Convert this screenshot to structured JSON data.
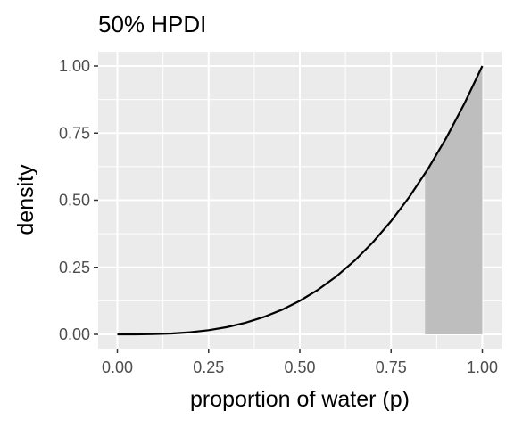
{
  "chart_data": {
    "type": "area",
    "title": "50% HPDI",
    "xlabel": "proportion of water (p)",
    "ylabel": "density",
    "xlim": [
      0,
      1
    ],
    "ylim": [
      0,
      1
    ],
    "x_ticks": [
      "0.00",
      "0.25",
      "0.50",
      "0.75",
      "1.00"
    ],
    "y_ticks": [
      "0.00",
      "0.25",
      "0.50",
      "0.75",
      "1.00"
    ],
    "grid": true,
    "series": [
      {
        "x": [
          0,
          0.05,
          0.1,
          0.15,
          0.2,
          0.25,
          0.3,
          0.35,
          0.4,
          0.45,
          0.5,
          0.55,
          0.6,
          0.65,
          0.7,
          0.75,
          0.8,
          0.85,
          0.9,
          0.95,
          1
        ],
        "y": [
          0,
          0.0001,
          0.001,
          0.0034,
          0.008,
          0.0156,
          0.027,
          0.0429,
          0.064,
          0.0911,
          0.125,
          0.1664,
          0.216,
          0.2746,
          0.343,
          0.4219,
          0.512,
          0.6141,
          0.729,
          0.8574,
          1
        ]
      }
    ],
    "shaded_interval": {
      "from": 0.843,
      "to": 1.0,
      "label": "50% HPDI"
    },
    "colors": {
      "panel": "#ebebeb",
      "grid": "#ffffff",
      "shade": "#bebebe",
      "line": "#000000"
    }
  }
}
